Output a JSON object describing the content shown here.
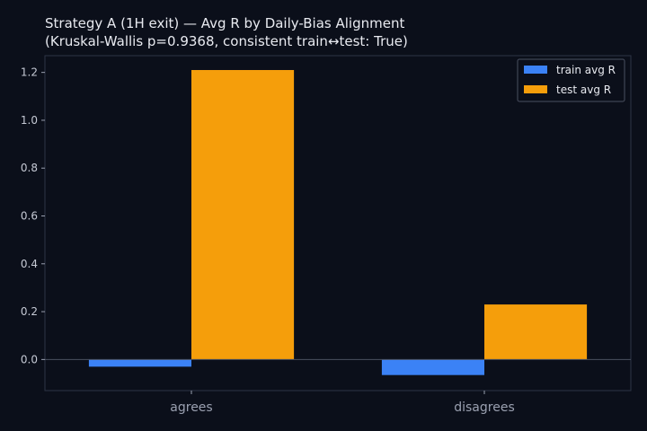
{
  "chart_data": {
    "type": "bar",
    "title": "Strategy A (1H exit) — Avg R by Daily-Bias Alignment",
    "subtitle": "(Kruskal-Wallis p=0.9368, consistent train↔test: True)",
    "categories": [
      "agrees",
      "disagrees"
    ],
    "series": [
      {
        "name": "train avg R",
        "values": [
          -0.03,
          -0.065
        ],
        "color": "#3b82f6"
      },
      {
        "name": "test avg R",
        "values": [
          1.21,
          0.23
        ],
        "color": "#f59e0b"
      }
    ],
    "xlabel": "",
    "ylabel": "",
    "ylim": [
      -0.13,
      1.27
    ],
    "yticks": [
      "0.0",
      "0.2",
      "0.4",
      "0.6",
      "0.8",
      "1.0",
      "1.2"
    ],
    "legend_position": "top-right",
    "grid": false,
    "colors": {
      "background": "#0b0f1a",
      "axis": "#2e3445",
      "text": "#e8eaf0"
    }
  }
}
